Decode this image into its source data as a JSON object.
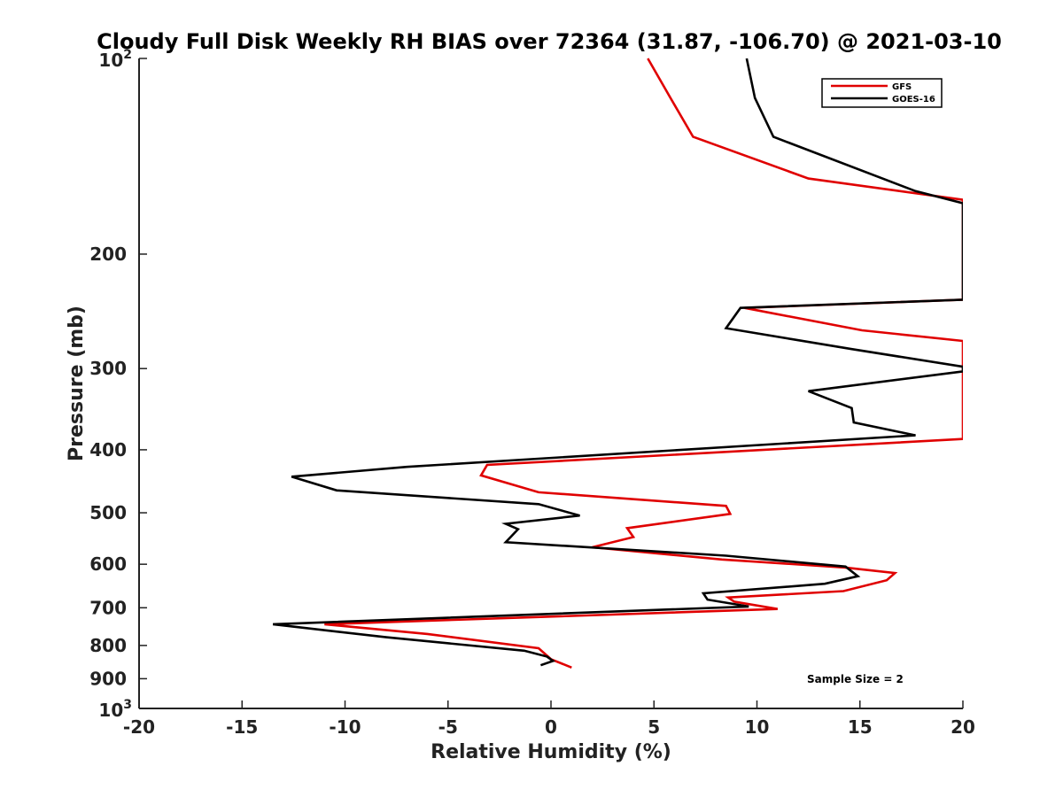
{
  "chart_data": {
    "type": "line",
    "title": "Cloudy Full Disk Weekly RH BIAS over 72364 (31.87, -106.70) @ 2021-03-10",
    "xlabel": "Relative Humidity (%)",
    "ylabel": "Pressure (mb)",
    "xlim": [
      -20,
      20
    ],
    "ylim": [
      100,
      1000
    ],
    "yscale": "log",
    "y_reversed": true,
    "grid": false,
    "legend_position": "top-right",
    "x_ticks": [
      -20,
      -15,
      -10,
      -5,
      0,
      5,
      10,
      15,
      20
    ],
    "y_ticks": [
      {
        "value": 100,
        "label": "10",
        "exp": "2"
      },
      {
        "value": 200,
        "label": "200"
      },
      {
        "value": 300,
        "label": "300"
      },
      {
        "value": 400,
        "label": "400"
      },
      {
        "value": 500,
        "label": "500"
      },
      {
        "value": 600,
        "label": "600"
      },
      {
        "value": 700,
        "label": "700"
      },
      {
        "value": 800,
        "label": "800"
      },
      {
        "value": 900,
        "label": "900"
      },
      {
        "value": 1000,
        "label": "10",
        "exp": "3"
      }
    ],
    "annotation": "Sample Size = 2",
    "series": [
      {
        "name": "GFS",
        "color": "#e00000",
        "points": [
          [
            4.7,
            100
          ],
          [
            5.8,
            115
          ],
          [
            6.9,
            132
          ],
          [
            12.5,
            153
          ],
          [
            20,
            165
          ],
          [
            20,
            235
          ],
          [
            9.4,
            242
          ],
          [
            15.1,
            262
          ],
          [
            20,
            272
          ],
          [
            20,
            385
          ],
          [
            -3.1,
            422
          ],
          [
            -3.4,
            438
          ],
          [
            -0.6,
            465
          ],
          [
            8.5,
            488
          ],
          [
            8.7,
            502
          ],
          [
            3.7,
            528
          ],
          [
            4,
            545
          ],
          [
            2,
            565
          ],
          [
            8.3,
            590
          ],
          [
            14.3,
            607
          ],
          [
            16.7,
            619
          ],
          [
            16.3,
            635
          ],
          [
            14.2,
            660
          ],
          [
            8.6,
            675
          ],
          [
            8.9,
            685
          ],
          [
            11,
            703
          ],
          [
            -11,
            742
          ],
          [
            -6,
            768
          ],
          [
            -0.6,
            808
          ],
          [
            0,
            840
          ],
          [
            1,
            865
          ]
        ]
      },
      {
        "name": "GOES-16",
        "color": "#000000",
        "points": [
          [
            9.5,
            100
          ],
          [
            9.9,
            115
          ],
          [
            10.8,
            132
          ],
          [
            17.7,
            160
          ],
          [
            20,
            167
          ],
          [
            20,
            235
          ],
          [
            9.2,
            242
          ],
          [
            8.5,
            260
          ],
          [
            14.6,
            280
          ],
          [
            20,
            298
          ],
          [
            20,
            303
          ],
          [
            12.5,
            325
          ],
          [
            14.6,
            345
          ],
          [
            14.7,
            363
          ],
          [
            17.7,
            380
          ],
          [
            -7,
            425
          ],
          [
            -12.6,
            440
          ],
          [
            -10.4,
            462
          ],
          [
            -0.6,
            485
          ],
          [
            1.4,
            505
          ],
          [
            -2.2,
            520
          ],
          [
            -1.6,
            530
          ],
          [
            -2.2,
            555
          ],
          [
            8.5,
            582
          ],
          [
            14.3,
            605
          ],
          [
            14.9,
            626
          ],
          [
            13.3,
            643
          ],
          [
            7.4,
            665
          ],
          [
            7.6,
            680
          ],
          [
            9.6,
            697
          ],
          [
            -13.5,
            742
          ],
          [
            -8,
            777
          ],
          [
            -1.3,
            815
          ],
          [
            -0.2,
            832
          ],
          [
            0.1,
            845
          ],
          [
            -0.5,
            858
          ]
        ]
      }
    ]
  }
}
